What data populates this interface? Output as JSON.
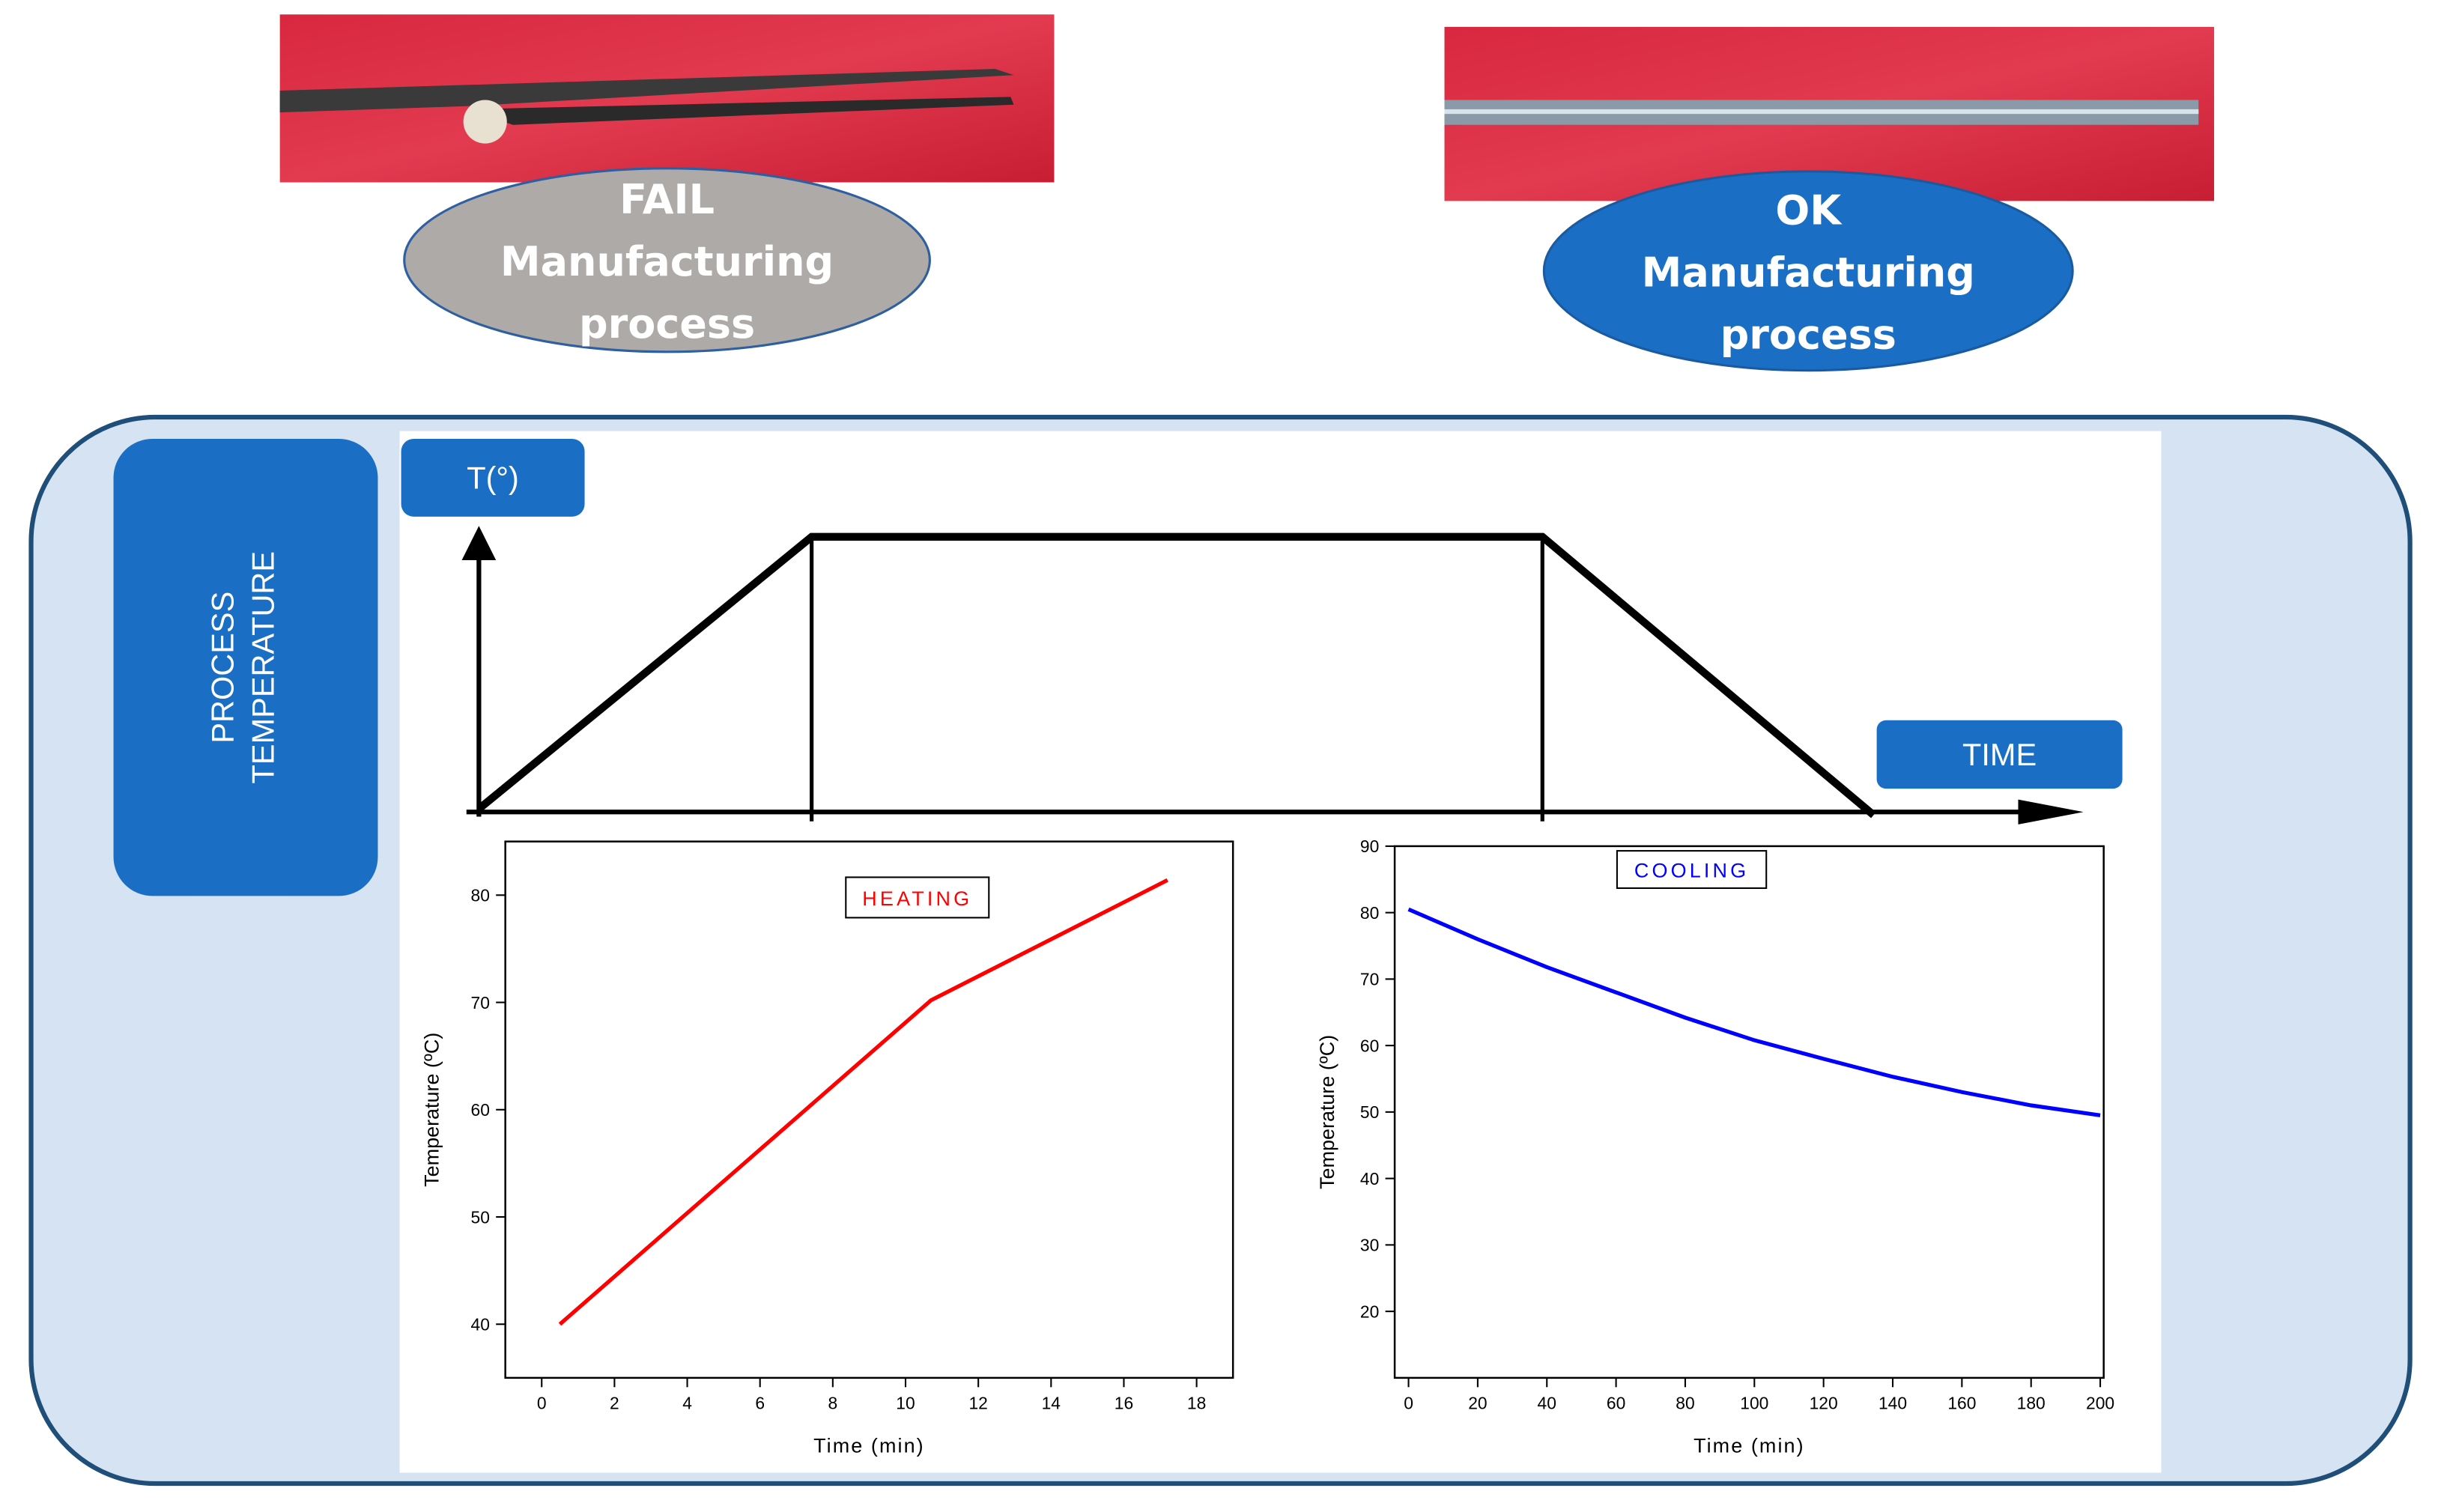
{
  "photos": {
    "fail": {
      "label": [
        "FAIL",
        "Manufacturing",
        "process"
      ]
    },
    "ok": {
      "label": [
        "OK",
        "Manufacturing",
        "process"
      ]
    }
  },
  "panel": {
    "side_label": [
      "PROCESS",
      "TEMPERATURE"
    ],
    "y_axis_label": "T(°)",
    "x_axis_label": "TIME"
  },
  "chart_data": [
    {
      "type": "line",
      "title": "HEATING",
      "title_color": "#ff0000",
      "xlabel": "Time (min)",
      "ylabel": "Temperature (ºC)",
      "x": [
        0.5,
        10.7,
        17.2
      ],
      "values": [
        40,
        70.2,
        81.4
      ],
      "color": "#ff0000",
      "xlim": [
        -1,
        19
      ],
      "ylim": [
        35,
        85
      ],
      "xticks": [
        0,
        2,
        4,
        6,
        8,
        10,
        12,
        14,
        16,
        18
      ],
      "yticks": [
        40,
        50,
        60,
        70,
        80
      ]
    },
    {
      "type": "line",
      "title": "COOLING",
      "title_color": "#0000ff",
      "xlabel": "Time (min)",
      "ylabel": "Temperature (ºC)",
      "x": [
        0,
        20,
        40,
        60,
        80,
        100,
        120,
        140,
        160,
        180,
        200
      ],
      "values": [
        80.5,
        76,
        71.8,
        68,
        64.2,
        60.8,
        58,
        55.3,
        53,
        51,
        49.5
      ],
      "color": "#0000ff",
      "xlim": [
        -4,
        201
      ],
      "ylim": [
        10,
        90
      ],
      "xticks": [
        0,
        20,
        40,
        60,
        80,
        100,
        120,
        140,
        160,
        180,
        200
      ],
      "yticks": [
        20,
        30,
        40,
        50,
        60,
        70,
        80,
        90
      ]
    }
  ]
}
